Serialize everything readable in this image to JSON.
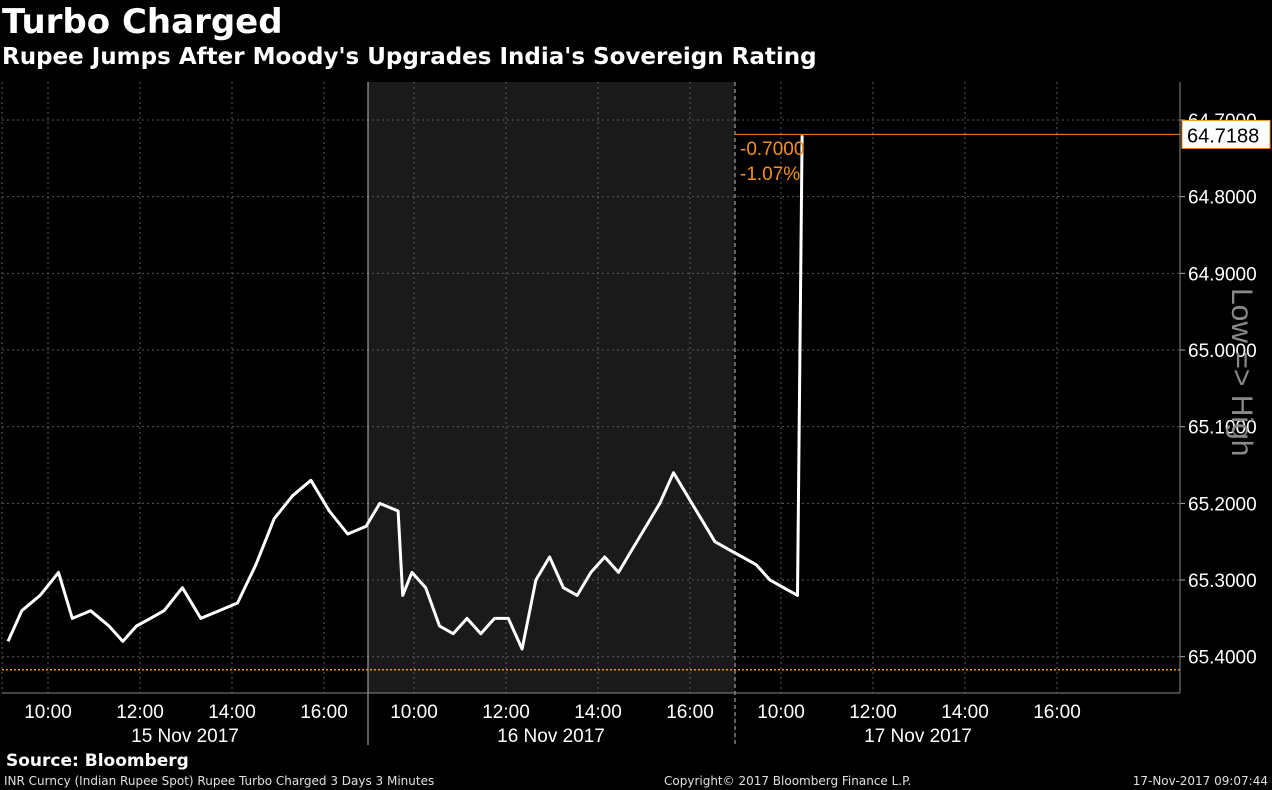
{
  "chart_data": {
    "type": "line",
    "title": "Turbo Charged",
    "subtitle": "Rupee Jumps After Moody's Upgrades India's Sovereign Rating",
    "y_axis_label": "Low => High",
    "y_axis_inverted": true,
    "ylim": [
      65.45,
      64.68
    ],
    "y_ticks": [
      "64.7000",
      "64.8000",
      "64.9000",
      "65.0000",
      "65.1000",
      "65.2000",
      "65.3000",
      "65.4000"
    ],
    "y_tick_values": [
      64.7,
      64.8,
      64.9,
      65.0,
      65.1,
      65.2,
      65.3,
      65.4
    ],
    "grid": true,
    "days": [
      {
        "label": "15 Nov 2017",
        "times": [
          "10:00",
          "12:00",
          "14:00",
          "16:00"
        ],
        "shaded": false
      },
      {
        "label": "16 Nov 2017",
        "times": [
          "10:00",
          "12:00",
          "14:00",
          "16:00"
        ],
        "shaded": true
      },
      {
        "label": "17 Nov 2017",
        "times": [
          "10:00",
          "12:00",
          "14:00",
          "16:00"
        ],
        "shaded": false
      }
    ],
    "series": [
      {
        "color": "#ffffff",
        "x_hours": [
          0,
          0.3,
          0.7,
          1.1,
          1.4,
          1.8,
          2.2,
          2.5,
          2.8,
          3.1,
          3.4,
          3.8,
          4.2,
          4.6,
          5.0,
          5.4,
          5.8,
          6.2,
          6.6,
          7.0,
          7.4,
          7.8,
          8.1,
          8.5,
          8.6,
          8.8,
          9.1,
          9.4,
          9.7,
          10.0,
          10.3,
          10.6,
          10.9,
          11.2,
          11.5,
          11.8,
          12.1,
          12.4,
          12.7,
          13.0,
          13.3,
          13.6,
          13.9,
          14.2,
          14.5,
          14.8,
          15.1,
          15.4,
          15.7,
          16.0,
          16.3,
          16.6,
          16.9,
          17.2,
          17.3
        ],
        "values": [
          65.38,
          65.34,
          65.32,
          65.29,
          65.35,
          65.34,
          65.36,
          65.38,
          65.36,
          65.35,
          65.34,
          65.31,
          65.35,
          65.34,
          65.33,
          65.28,
          65.22,
          65.19,
          65.17,
          65.21,
          65.24,
          65.23,
          65.2,
          65.21,
          65.32,
          65.29,
          65.31,
          65.36,
          65.37,
          65.35,
          65.37,
          65.35,
          65.35,
          65.39,
          65.3,
          65.27,
          65.31,
          65.32,
          65.29,
          65.27,
          65.29,
          65.26,
          65.23,
          65.2,
          65.16,
          65.19,
          65.22,
          65.25,
          65.26,
          65.27,
          65.28,
          65.3,
          65.31,
          65.32,
          64.72
        ]
      }
    ],
    "last_value_label": "64.7188",
    "last_value": 64.7188,
    "low_reference": 65.417,
    "annotations": {
      "net_change": "-0.7000",
      "pct_change": "-1.07%"
    }
  },
  "source": "Source: Bloomberg",
  "footer": {
    "left": "INR Curncy (Indian Rupee Spot) Rupee Turbo Charged 3 Days 3 Minutes",
    "middle": "Copyright© 2017 Bloomberg Finance L.P.",
    "right": "17-Nov-2017 09:07:44"
  },
  "colors": {
    "background": "#000000",
    "shaded_day": "#1a1a1a",
    "line": "#ffffff",
    "accent": "#f5901e",
    "grid": "#5a5a5a",
    "axis_label": "#8a8a8a"
  }
}
